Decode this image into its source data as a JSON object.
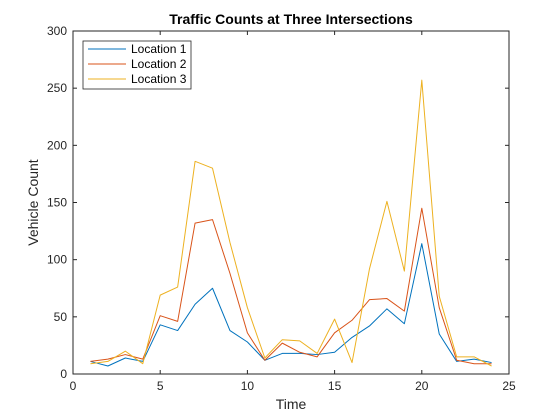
{
  "chart_data": {
    "type": "line",
    "title": "Traffic Counts at Three Intersections",
    "xlabel": "Time",
    "ylabel": "Vehicle Count",
    "xlim": [
      0,
      25
    ],
    "ylim": [
      0,
      300
    ],
    "xticks": [
      0,
      5,
      10,
      15,
      20,
      25
    ],
    "yticks": [
      0,
      50,
      100,
      150,
      200,
      250,
      300
    ],
    "grid": false,
    "legend_position": "top-left",
    "x": [
      1,
      2,
      3,
      4,
      5,
      6,
      7,
      8,
      9,
      10,
      11,
      12,
      13,
      14,
      15,
      16,
      17,
      18,
      19,
      20,
      21,
      22,
      23,
      24
    ],
    "series": [
      {
        "name": "Location 1",
        "color": "#0072BD",
        "values": [
          11,
          7,
          14,
          11,
          43,
          38,
          61,
          75,
          38,
          28,
          12,
          18,
          18,
          17,
          19,
          32,
          42,
          57,
          44,
          114,
          35,
          11,
          13,
          10
        ]
      },
      {
        "name": "Location 2",
        "color": "#D95319",
        "values": [
          11,
          13,
          17,
          13,
          51,
          46,
          132,
          135,
          88,
          36,
          12,
          27,
          19,
          15,
          36,
          47,
          65,
          66,
          55,
          145,
          58,
          12,
          9,
          9
        ]
      },
      {
        "name": "Location 3",
        "color": "#EDB120",
        "values": [
          9,
          11,
          20,
          9,
          69,
          76,
          186,
          180,
          115,
          58,
          14,
          30,
          29,
          18,
          48,
          10,
          92,
          151,
          90,
          257,
          68,
          15,
          15,
          7
        ]
      }
    ]
  }
}
